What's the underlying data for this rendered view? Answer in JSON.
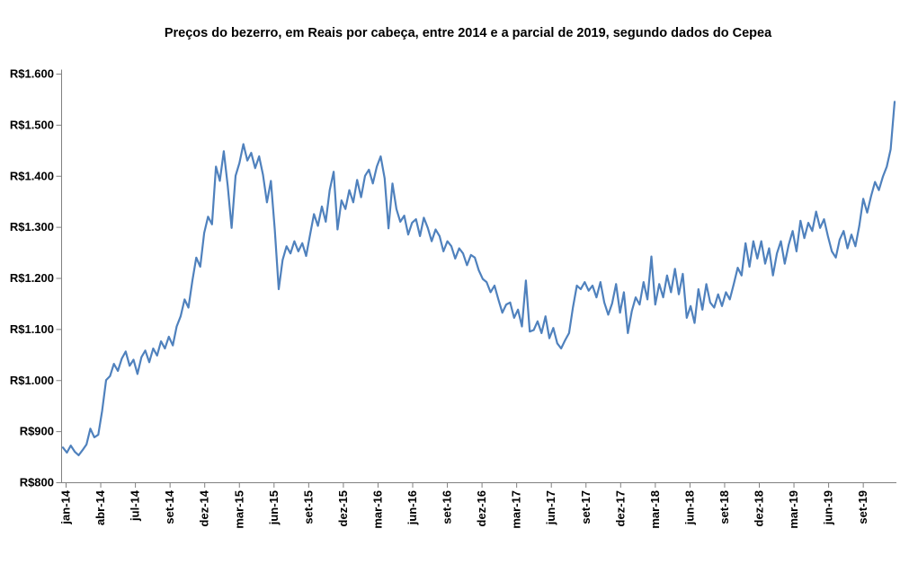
{
  "chart_data": {
    "type": "line",
    "title": "Preços do bezerro, em Reais por cabeça, entre 2014 e a parcial de 2019, segundo dados do Cepea",
    "source": "Cepea",
    "unit": "Reais por cabeça",
    "currency_prefix": "R$",
    "ylim": [
      800,
      1600
    ],
    "grid": false,
    "legend_position": "none",
    "background_color": "#FFFFFF",
    "axis_color": "#808080",
    "label_color": "#000000",
    "y_ticks": [
      {
        "label": "R$1.600",
        "value": 1600
      },
      {
        "label": "R$1.500",
        "value": 1500
      },
      {
        "label": "R$1.400",
        "value": 1400
      },
      {
        "label": "R$1.300",
        "value": 1300
      },
      {
        "label": "R$1.200",
        "value": 1200
      },
      {
        "label": "R$1.100",
        "value": 1100
      },
      {
        "label": "R$1.000",
        "value": 1000
      },
      {
        "label": "R$900",
        "value": 900
      },
      {
        "label": "R$800",
        "value": 800
      }
    ],
    "x_ticks": [
      "jan-14",
      "abr-14",
      "jul-14",
      "set-14",
      "dez-14",
      "mar-15",
      "jun-15",
      "set-15",
      "dez-15",
      "mar-16",
      "jun-16",
      "set-16",
      "dez-16",
      "mar-17",
      "jun-17",
      "set-17",
      "dez-17",
      "mar-18",
      "jun-18",
      "set-18",
      "dez-18",
      "mar-19",
      "jun-19",
      "set-19"
    ],
    "series": [
      {
        "name": "Preço do bezerro (R$ por cabeça)",
        "color": "#4F81BD",
        "start": "jan-14",
        "end": "nov-19",
        "points_per_month": 3,
        "values": [
          868,
          858,
          872,
          860,
          853,
          863,
          874,
          905,
          888,
          893,
          940,
          1000,
          1008,
          1032,
          1018,
          1042,
          1056,
          1028,
          1040,
          1012,
          1045,
          1058,
          1035,
          1062,
          1048,
          1076,
          1062,
          1085,
          1068,
          1105,
          1125,
          1158,
          1142,
          1195,
          1240,
          1222,
          1288,
          1320,
          1305,
          1418,
          1390,
          1448,
          1380,
          1298,
          1400,
          1425,
          1462,
          1430,
          1445,
          1415,
          1438,
          1402,
          1348,
          1390,
          1295,
          1178,
          1235,
          1262,
          1248,
          1272,
          1252,
          1268,
          1243,
          1285,
          1325,
          1302,
          1340,
          1310,
          1372,
          1408,
          1295,
          1352,
          1335,
          1372,
          1348,
          1392,
          1358,
          1400,
          1412,
          1385,
          1418,
          1438,
          1395,
          1297,
          1385,
          1335,
          1310,
          1322,
          1285,
          1308,
          1315,
          1282,
          1318,
          1298,
          1272,
          1295,
          1282,
          1252,
          1272,
          1262,
          1238,
          1258,
          1248,
          1225,
          1245,
          1240,
          1215,
          1198,
          1192,
          1172,
          1185,
          1158,
          1132,
          1148,
          1152,
          1122,
          1138,
          1105,
          1195,
          1095,
          1098,
          1115,
          1092,
          1125,
          1082,
          1102,
          1072,
          1062,
          1078,
          1092,
          1142,
          1185,
          1178,
          1192,
          1175,
          1185,
          1162,
          1192,
          1152,
          1128,
          1150,
          1188,
          1132,
          1172,
          1092,
          1135,
          1162,
          1148,
          1192,
          1158,
          1242,
          1148,
          1188,
          1162,
          1205,
          1172,
          1218,
          1168,
          1208,
          1122,
          1145,
          1112,
          1178,
          1138,
          1188,
          1152,
          1142,
          1168,
          1145,
          1172,
          1158,
          1188,
          1220,
          1205,
          1268,
          1222,
          1272,
          1238,
          1272,
          1228,
          1258,
          1205,
          1248,
          1272,
          1228,
          1265,
          1292,
          1252,
          1312,
          1278,
          1308,
          1292,
          1330,
          1298,
          1315,
          1282,
          1252,
          1240,
          1275,
          1292,
          1258,
          1285,
          1262,
          1302,
          1355,
          1328,
          1360,
          1388,
          1372,
          1398,
          1418,
          1452,
          1545
        ]
      }
    ]
  }
}
